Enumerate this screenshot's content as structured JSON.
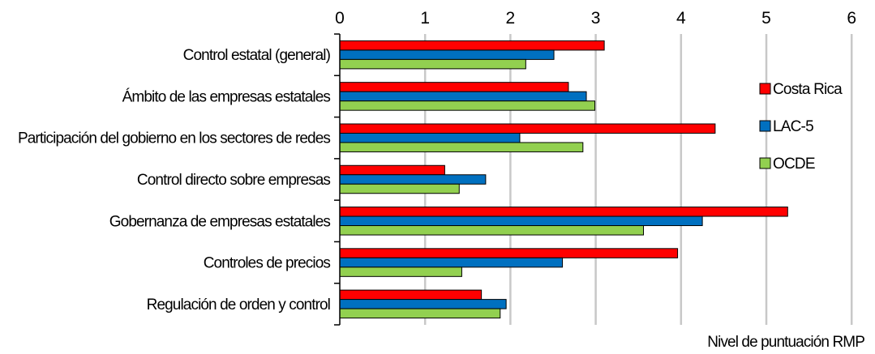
{
  "chart_data": {
    "type": "bar",
    "orientation": "horizontal",
    "categories": [
      "Control estatal (general)",
      "Ámbito de las empresas estatales",
      "Participación del gobierno en los sectores de redes",
      "Control directo sobre empresas",
      "Gobernanza de empresas estatales",
      "Controles de precios",
      "Regulación de orden y control"
    ],
    "series": [
      {
        "name": "Costa Rica",
        "color": "#ff0000",
        "values": [
          3.1,
          2.68,
          4.4,
          1.23,
          5.25,
          3.96,
          1.66
        ]
      },
      {
        "name": "LAC-5",
        "color": "#0070c0",
        "values": [
          2.51,
          2.89,
          2.11,
          1.71,
          4.25,
          2.61,
          1.95
        ]
      },
      {
        "name": "OCDE",
        "color": "#92d050",
        "values": [
          2.18,
          2.99,
          2.85,
          1.4,
          3.56,
          1.43,
          1.88
        ]
      }
    ],
    "x_ticks": [
      "0",
      "1",
      "2",
      "3",
      "4",
      "5",
      "6"
    ],
    "xlim": [
      0,
      6
    ],
    "xlabel": "Nivel de puntuación RMP",
    "x_axis_position": "top",
    "grid": "vertical",
    "legend_position": "right"
  }
}
